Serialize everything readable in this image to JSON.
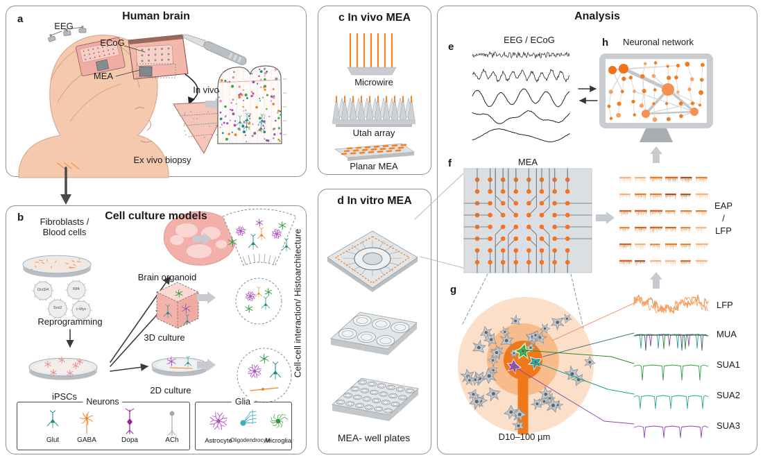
{
  "a": {
    "letter": "a",
    "title": "Human brain",
    "eeg": "EEG",
    "ecog": "ECoG",
    "mea": "MEA",
    "in_vivo": "In vivo",
    "ex_vivo": "Ex vivo biopsy"
  },
  "b": {
    "letter": "b",
    "title": "Cell culture models",
    "fib1": "Fibroblasts /",
    "fib2": "Blood cells",
    "factors": [
      "Oct3/4",
      "Klf4",
      "Sox2",
      "c-Myc"
    ],
    "reprogramming": "Reprogramming",
    "ipscs": "iPSCs",
    "brain_organoid": "Brain organoid",
    "c3d": "3D culture",
    "c2d": "2D culture",
    "vertical": "Cell-cell interaction/ Histoarchitecture",
    "neurons": {
      "title": "Neurons",
      "items": [
        "Glut",
        "GABA",
        "Dopa",
        "ACh"
      ]
    },
    "glia": {
      "title": "Glia",
      "items": [
        "Astrocyte",
        "Oligodendrocyte",
        "Microglia"
      ]
    }
  },
  "c": {
    "letter": "c",
    "title": "In vivo MEA",
    "microwire": "Microwire",
    "utah": "Utah array",
    "planar": "Planar MEA"
  },
  "d": {
    "letter": "d",
    "title": "In vitro MEA",
    "caption": "MEA- well plates"
  },
  "an": {
    "title": "Analysis",
    "e": "e",
    "eeg_ecog": "EEG / ECoG",
    "h": "h",
    "network": "Neuronal network",
    "f": "f",
    "mea": "MEA",
    "eap": "EAP",
    "slash": "/",
    "lfp": "LFP",
    "g": "g",
    "diameter": "D10–100 µm",
    "traces": [
      "LFP",
      "MUA",
      "SUA1",
      "SUA2",
      "SUA3"
    ]
  },
  "colors": {
    "accent": "#f07d22",
    "panel_border": "#8f8f8f",
    "glut": "#1d8a80",
    "gaba": "#f58220",
    "dopa": "#9b1f93",
    "ach": "#a9a9a9",
    "astrocyte": "#b14fc5",
    "oligodendrocyte": "#3fb0c0",
    "microglia": "#2f9e41"
  }
}
